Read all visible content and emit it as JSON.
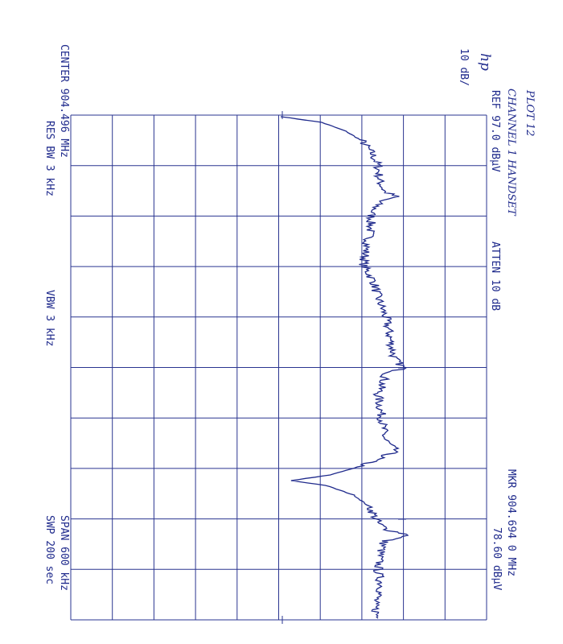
{
  "logo": "hp",
  "handwritten": {
    "plot": "PLOT 12",
    "note": "CHANNEL 1 HANDSET"
  },
  "top_labels": {
    "scale": "10 dB/",
    "ref": "REF 97.0 dBµV",
    "atten": "ATTEN 10 dB",
    "marker_freq": "MKR 904.694 0 MHz",
    "marker_level": "78.60 dBµV"
  },
  "bottom_labels": {
    "center": "CENTER 904.496 MHz",
    "res_bw": "RES BW 3 kHz",
    "vbw": "VBW 3 kHz",
    "span": "SPAN 600 kHz",
    "sweep": "SWP 200 sec"
  }
}
